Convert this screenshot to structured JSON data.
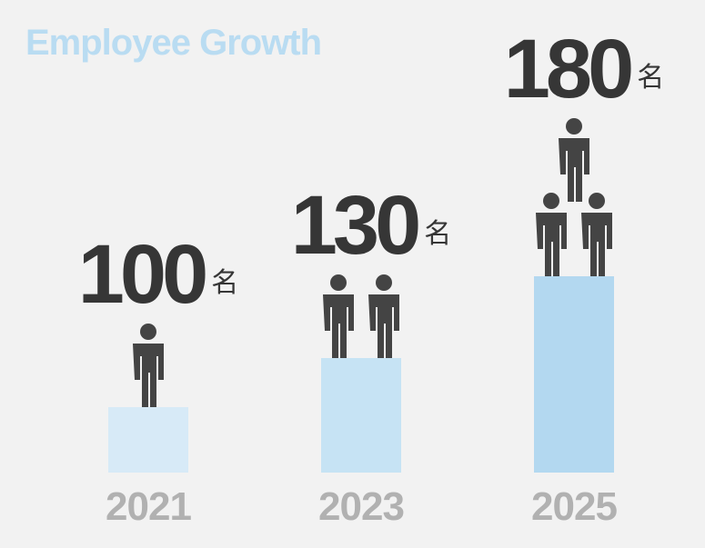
{
  "chart_data": {
    "type": "bar",
    "title": "Employee Growth",
    "categories": [
      "2021",
      "2023",
      "2025"
    ],
    "values": [
      100,
      130,
      180
    ],
    "unit": "名",
    "colors": [
      "#d7eaf7",
      "#c6e3f4",
      "#b3d8f0"
    ],
    "ylim": [
      60,
      200
    ]
  }
}
